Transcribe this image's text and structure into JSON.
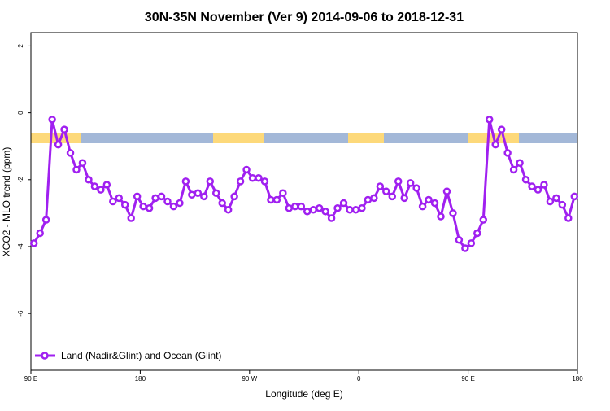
{
  "chart_data": {
    "type": "line",
    "title": "30N-35N November (Ver 9)   2014-09-06 to 2018-12-31",
    "x_label": "Longitude (deg E)",
    "y_label": "XCO2 - MLO trend (ppm)",
    "x": [
      92.5,
      97.5,
      102.5,
      107.5,
      112.5,
      117.5,
      122.5,
      127.5,
      132.5,
      137.5,
      142.5,
      147.5,
      152.5,
      157.5,
      162.5,
      167.5,
      172.5,
      177.5,
      182.5,
      187.5,
      192.5,
      197.5,
      202.5,
      207.5,
      212.5,
      217.5,
      222.5,
      227.5,
      232.5,
      237.5,
      242.5,
      247.5,
      252.5,
      257.5,
      262.5,
      267.5,
      272.5,
      277.5,
      282.5,
      287.5,
      292.5,
      297.5,
      302.5,
      307.5,
      312.5,
      317.5,
      322.5,
      327.5,
      332.5,
      337.5,
      342.5,
      347.5,
      352.5,
      357.5,
      362.5,
      367.5,
      372.5,
      377.5,
      382.5,
      387.5,
      392.5,
      397.5,
      402.5,
      407.5,
      412.5,
      417.5,
      422.5,
      427.5,
      432.5,
      437.5,
      442.5,
      447.5,
      452.5,
      457.5,
      462.5,
      467.5,
      472.5,
      477.5,
      482.5,
      487.5,
      492.5,
      497.5,
      502.5,
      507.5,
      512.5,
      517.5,
      522.5,
      527.5,
      532.5,
      537.5
    ],
    "series": [
      {
        "name": "Land (Nadir&Glint) and Ocean (Glint)",
        "color": "#a020f0",
        "values": [
          -3.9,
          -3.6,
          -3.2,
          -0.2,
          -0.95,
          -0.5,
          -1.2,
          -1.7,
          -1.5,
          -2.0,
          -2.2,
          -2.3,
          -2.15,
          -2.65,
          -2.55,
          -2.75,
          -3.15,
          -2.5,
          -2.8,
          -2.85,
          -2.55,
          -2.5,
          -2.65,
          -2.8,
          -2.7,
          -2.05,
          -2.45,
          -2.4,
          -2.5,
          -2.05,
          -2.4,
          -2.7,
          -2.9,
          -2.5,
          -2.05,
          -1.7,
          -1.95,
          -1.95,
          -2.05,
          -2.6,
          -2.6,
          -2.4,
          -2.85,
          -2.8,
          -2.8,
          -2.95,
          -2.9,
          -2.85,
          -2.95,
          -3.15,
          -2.85,
          -2.7,
          -2.9,
          -2.9,
          -2.85,
          -2.6,
          -2.55,
          -2.2,
          -2.35,
          -2.5,
          -2.05,
          -2.55,
          -2.1,
          -2.25,
          -2.8,
          -2.6,
          -2.7,
          -3.1,
          -2.35,
          -3.0,
          -3.8,
          -4.05,
          -3.9,
          -3.6,
          -3.2,
          -0.2,
          -0.95,
          -0.5,
          -1.2,
          -1.7,
          -1.5,
          -2.0,
          -2.2,
          -2.3,
          -2.15,
          -2.65,
          -2.55,
          -2.75,
          -3.15,
          -2.5
        ]
      }
    ],
    "xlim": [
      90,
      540
    ],
    "xticks": [
      {
        "value": 90,
        "label": "90 E"
      },
      180,
      {
        "value": 270,
        "label": "90 W"
      },
      {
        "value": 360,
        "label": "0"
      },
      {
        "value": 450,
        "label": "90 E"
      },
      {
        "value": 540,
        "label": "180"
      }
    ],
    "ylim": [
      -7.7,
      2.4
    ],
    "yticks": [
      -6,
      -4,
      -2,
      0,
      2
    ],
    "legend": "bottom-left"
  }
}
